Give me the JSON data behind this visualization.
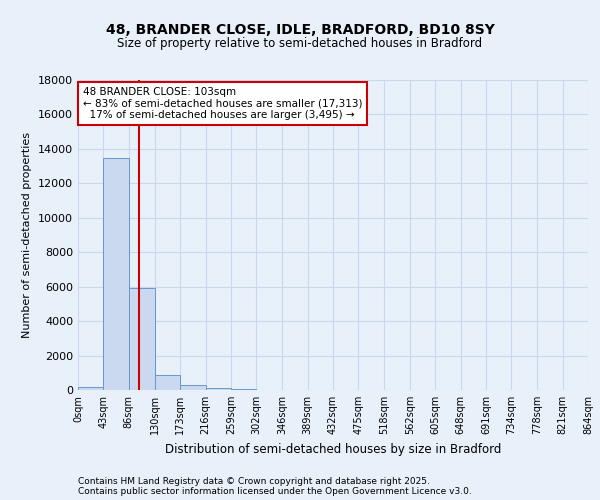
{
  "title_line1": "48, BRANDER CLOSE, IDLE, BRADFORD, BD10 8SY",
  "title_line2": "Size of property relative to semi-detached houses in Bradford",
  "xlabel": "Distribution of semi-detached houses by size in Bradford",
  "ylabel": "Number of semi-detached properties",
  "bin_edges": [
    0,
    43,
    86,
    130,
    173,
    216,
    259,
    302,
    346,
    389,
    432,
    475,
    518,
    562,
    605,
    648,
    691,
    734,
    778,
    821,
    864
  ],
  "bar_heights": [
    200,
    13500,
    5900,
    900,
    310,
    100,
    40,
    15,
    8,
    4,
    2,
    1,
    1,
    0,
    0,
    0,
    0,
    0,
    0,
    0
  ],
  "bar_color": "#cad9ef",
  "bar_edge_color": "#6699cc",
  "property_size": 103,
  "red_line_color": "#cc0000",
  "annotation_text": "48 BRANDER CLOSE: 103sqm\n← 83% of semi-detached houses are smaller (17,313)\n  17% of semi-detached houses are larger (3,495) →",
  "annotation_box_color": "#ffffff",
  "annotation_box_edge_color": "#cc0000",
  "ylim": [
    0,
    18000
  ],
  "yticks": [
    0,
    2000,
    4000,
    6000,
    8000,
    10000,
    12000,
    14000,
    16000,
    18000
  ],
  "bg_color": "#e8f0fa",
  "grid_color": "#c8d8ee",
  "footer_line1": "Contains HM Land Registry data © Crown copyright and database right 2025.",
  "footer_line2": "Contains public sector information licensed under the Open Government Licence v3.0.",
  "xtick_labels": [
    "0sqm",
    "43sqm",
    "86sqm",
    "130sqm",
    "173sqm",
    "216sqm",
    "259sqm",
    "302sqm",
    "346sqm",
    "389sqm",
    "432sqm",
    "475sqm",
    "518sqm",
    "562sqm",
    "605sqm",
    "648sqm",
    "691sqm",
    "734sqm",
    "778sqm",
    "821sqm",
    "864sqm"
  ]
}
